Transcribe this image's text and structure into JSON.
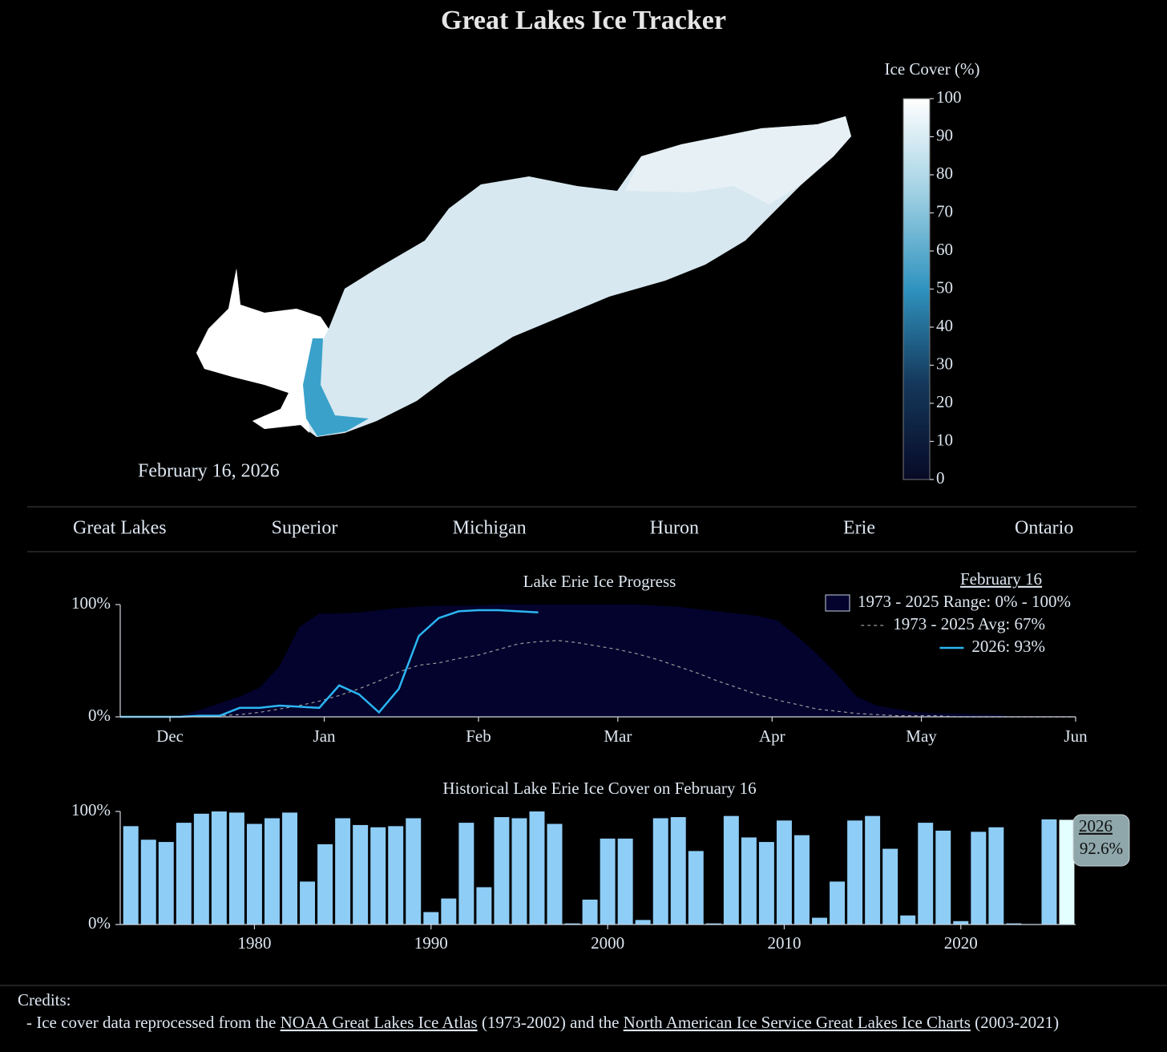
{
  "title": "Great Lakes Ice Tracker",
  "map": {
    "date": "February 16, 2026",
    "colorbar": {
      "title": "Ice Cover (%)",
      "lim": [
        0,
        100
      ],
      "ticks": [
        0,
        10,
        20,
        30,
        40,
        50,
        60,
        70,
        80,
        90,
        100
      ],
      "colors": [
        "#070a26",
        "#14375a",
        "#2f93bf",
        "#9fd0e3",
        "#ffffff"
      ]
    }
  },
  "tabs": [
    "Great Lakes",
    "Superior",
    "Michigan",
    "Huron",
    "Erie",
    "Ontario"
  ],
  "chart_data": [
    {
      "type": "line",
      "title": "Lake Erie Ice Progress",
      "legend_title": "February 16",
      "legend": "upper right",
      "x": [
        -10,
        -6,
        -2,
        2,
        6,
        10,
        14,
        18,
        22,
        26,
        30,
        34,
        38,
        42,
        46,
        50,
        54,
        58,
        62,
        66,
        70,
        74,
        78,
        82,
        86,
        90,
        94,
        98,
        102,
        106,
        110,
        114,
        118,
        122,
        126,
        130,
        134,
        138,
        142,
        146,
        150,
        154,
        158,
        162,
        166,
        170,
        174,
        178,
        182
      ],
      "xlim": [
        -10,
        182
      ],
      "xticks": [
        {
          "value": 0,
          "label": "Dec"
        },
        {
          "value": 31,
          "label": "Jan"
        },
        {
          "value": 62,
          "label": "Feb"
        },
        {
          "value": 90,
          "label": "Mar"
        },
        {
          "value": 121,
          "label": "Apr"
        },
        {
          "value": 151,
          "label": "May"
        },
        {
          "value": 182,
          "label": "Jun"
        }
      ],
      "ylim": [
        0,
        100
      ],
      "yticks": [
        {
          "value": 0,
          "label": "0%"
        },
        {
          "value": 100,
          "label": "100%"
        }
      ],
      "series": [
        {
          "name": "1973 - 2025 Range: 0% - 100%",
          "color": "#03032e",
          "low": [
            0,
            0,
            0,
            0,
            0,
            0,
            0,
            0,
            0,
            0,
            0,
            0,
            0,
            0,
            0,
            0,
            0,
            0,
            0,
            0,
            0,
            0,
            0,
            0,
            0,
            0,
            0,
            0,
            0,
            0,
            0,
            0,
            0,
            0,
            0,
            0,
            0,
            0,
            0,
            0,
            0,
            0,
            0,
            0,
            0,
            0,
            0,
            0,
            0
          ],
          "values": [
            0,
            0,
            0,
            1,
            6,
            12,
            18,
            26,
            45,
            80,
            92,
            92,
            93,
            95,
            97,
            98,
            99,
            99,
            99,
            100,
            100,
            100,
            100,
            100,
            100,
            100,
            100,
            99,
            98,
            96,
            94,
            92,
            90,
            86,
            72,
            56,
            38,
            18,
            10,
            7,
            4,
            3,
            3,
            2,
            2,
            0,
            0,
            0,
            0
          ]
        },
        {
          "name": "1973 - 2025 Avg: 67%",
          "color": "#9a9a9a",
          "dash": true,
          "values": [
            0,
            0,
            0,
            0,
            1,
            1,
            2,
            4,
            7,
            10,
            14,
            19,
            25,
            32,
            40,
            46,
            48,
            52,
            55,
            60,
            65,
            67,
            68,
            66,
            63,
            60,
            56,
            51,
            45,
            39,
            32,
            26,
            20,
            15,
            11,
            7,
            5,
            3,
            2,
            1,
            1,
            1,
            0,
            0,
            0,
            0,
            0,
            0,
            0
          ]
        },
        {
          "name": "2026: 93%",
          "color": "#2bb6f2",
          "values": [
            0,
            0,
            0,
            0,
            1,
            1,
            8,
            8,
            10,
            9,
            8,
            28,
            20,
            4,
            25,
            72,
            88,
            94,
            95,
            95,
            94,
            93,
            null,
            null,
            null,
            null,
            null,
            null,
            null,
            null,
            null,
            null,
            null,
            null,
            null,
            null,
            null,
            null,
            null,
            null,
            null,
            null,
            null,
            null,
            null,
            null,
            null,
            null,
            null
          ]
        }
      ]
    },
    {
      "type": "bar",
      "title": "Historical Lake Erie Ice Cover on February 16",
      "x": [
        1973,
        1974,
        1975,
        1976,
        1977,
        1978,
        1979,
        1980,
        1981,
        1982,
        1983,
        1984,
        1985,
        1986,
        1987,
        1988,
        1989,
        1990,
        1991,
        1992,
        1993,
        1994,
        1995,
        1996,
        1997,
        1998,
        1999,
        2000,
        2001,
        2002,
        2003,
        2004,
        2005,
        2006,
        2007,
        2008,
        2009,
        2010,
        2011,
        2012,
        2013,
        2014,
        2015,
        2016,
        2017,
        2018,
        2019,
        2020,
        2021,
        2022,
        2023,
        2024,
        2025,
        2026
      ],
      "values": [
        87,
        75,
        73,
        90,
        98,
        100,
        99,
        89,
        94,
        99,
        38,
        71,
        94,
        88,
        86,
        87,
        94,
        11,
        23,
        90,
        33,
        95,
        94,
        100,
        89,
        1,
        22,
        76,
        76,
        4,
        94,
        95,
        65,
        1,
        96,
        77,
        73,
        92,
        79,
        6,
        38,
        92,
        96,
        67,
        8,
        90,
        83,
        3,
        82,
        86,
        1,
        0,
        93,
        92.6
      ],
      "value_labels": [
        null,
        null,
        null,
        null,
        null,
        null,
        null,
        null,
        null,
        null,
        null,
        null,
        null,
        null,
        null,
        null,
        null,
        null,
        null,
        null,
        null,
        null,
        null,
        null,
        null,
        null,
        null,
        null,
        null,
        null,
        null,
        null,
        null,
        null,
        null,
        null,
        null,
        null,
        null,
        null,
        null,
        null,
        null,
        null,
        null,
        null,
        null,
        null,
        null,
        null,
        null,
        null,
        null,
        "92.6%"
      ],
      "color": "#8ecdf6",
      "highlight_color": "#e4ffff",
      "label_box_color": "#8fa7ab",
      "xlim": [
        1972.4,
        2026.5
      ],
      "xticks": [
        1980,
        1990,
        2000,
        2010,
        2020
      ],
      "ylim": [
        0,
        100
      ],
      "yticks": [
        {
          "value": 0,
          "label": "0%"
        },
        {
          "value": 100,
          "label": "100%"
        }
      ]
    }
  ],
  "credits": {
    "heading": "Credits:",
    "segments": [
      {
        "text": "- Ice cover data reprocessed from the "
      },
      {
        "link": "NOAA Great Lakes Ice Atlas"
      },
      {
        "text": " (1973-2002) and the "
      },
      {
        "link": "North American Ice Service Great Lakes Ice Charts"
      },
      {
        "text": " (2003-2021)"
      }
    ]
  }
}
